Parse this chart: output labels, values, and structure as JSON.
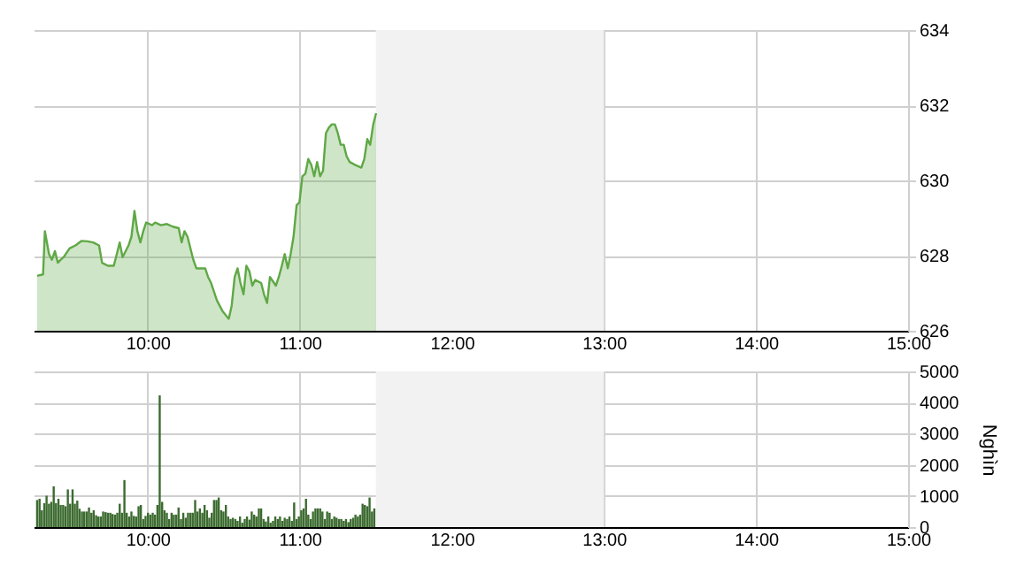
{
  "chart_data": [
    {
      "type": "area",
      "color": "#5fa846",
      "grid": true,
      "x": [
        9.273,
        9.312,
        9.324,
        9.351,
        9.37,
        9.39,
        9.409,
        9.428,
        9.448,
        9.486,
        9.525,
        9.564,
        9.603,
        9.641,
        9.68,
        9.7,
        9.738,
        9.777,
        9.797,
        9.816,
        9.835,
        9.874,
        9.893,
        9.913,
        9.932,
        9.952,
        9.971,
        9.99,
        10.029,
        10.049,
        10.087,
        10.126,
        10.165,
        10.204,
        10.223,
        10.242,
        10.262,
        10.3,
        10.32,
        10.378,
        10.397,
        10.417,
        10.455,
        10.494,
        10.533,
        10.552,
        10.572,
        10.591,
        10.61,
        10.63,
        10.649,
        10.669,
        10.688,
        10.707,
        10.746,
        10.765,
        10.785,
        10.804,
        10.843,
        10.862,
        10.882,
        10.901,
        10.921,
        10.94,
        10.959,
        10.979,
        10.998,
        11.017,
        11.037,
        11.056,
        11.076,
        11.095,
        11.114,
        11.134,
        11.153,
        11.172,
        11.192,
        11.211,
        11.231,
        11.25,
        11.269,
        11.289,
        11.308,
        11.328,
        11.366,
        11.405,
        11.424,
        11.444,
        11.463,
        11.483,
        11.502
      ],
      "values": [
        627.46,
        627.5,
        628.65,
        628.04,
        627.89,
        628.12,
        627.81,
        627.89,
        627.96,
        628.19,
        628.27,
        628.39,
        628.38,
        628.35,
        628.27,
        627.81,
        627.73,
        627.73,
        628.04,
        628.35,
        627.96,
        628.27,
        628.5,
        629.19,
        628.65,
        628.35,
        628.65,
        628.88,
        628.81,
        628.88,
        628.81,
        628.84,
        628.77,
        628.73,
        628.35,
        628.65,
        628.5,
        627.89,
        627.66,
        627.66,
        627.43,
        627.27,
        626.81,
        626.51,
        626.32,
        626.66,
        627.43,
        627.66,
        627.27,
        626.97,
        627.73,
        627.58,
        627.2,
        627.35,
        627.27,
        626.97,
        626.74,
        627.43,
        627.2,
        627.43,
        627.73,
        628.04,
        627.66,
        628.04,
        628.5,
        629.34,
        629.42,
        630.11,
        630.18,
        630.57,
        630.41,
        630.11,
        630.49,
        630.11,
        630.26,
        631.26,
        631.41,
        631.49,
        631.49,
        631.26,
        630.95,
        630.95,
        630.64,
        630.49,
        630.41,
        630.34,
        630.57,
        631.1,
        630.95,
        631.49,
        631.79
      ],
      "xlim": [
        9.25,
        15
      ],
      "xticks": [
        {
          "value": 10,
          "label": "10:00"
        },
        {
          "value": 11,
          "label": "11:00"
        },
        {
          "value": 12,
          "label": "12:00"
        },
        {
          "value": 13,
          "label": "13:00"
        },
        {
          "value": 14,
          "label": "14:00"
        },
        {
          "value": 15,
          "label": "15:00"
        }
      ],
      "ylim": [
        626,
        634
      ],
      "yticks": [
        626,
        628,
        630,
        632,
        634
      ],
      "bands": [
        {
          "axis": "x",
          "from": 11.5,
          "to": 13,
          "color": "#f2f2f2"
        }
      ]
    },
    {
      "type": "bar",
      "color": "#3c6b30",
      "grid": true,
      "ylabel": "Nghìn",
      "x": [
        9.273,
        9.289,
        9.304,
        9.32,
        9.335,
        9.351,
        9.366,
        9.382,
        9.397,
        9.413,
        9.428,
        9.444,
        9.459,
        9.475,
        9.49,
        9.506,
        9.521,
        9.537,
        9.552,
        9.568,
        9.583,
        9.599,
        9.614,
        9.63,
        9.645,
        9.661,
        9.676,
        9.692,
        9.707,
        9.723,
        9.738,
        9.754,
        9.769,
        9.785,
        9.8,
        9.816,
        9.831,
        9.847,
        9.862,
        9.878,
        9.893,
        9.909,
        9.924,
        9.94,
        9.955,
        9.971,
        9.986,
        10.002,
        10.017,
        10.033,
        10.048,
        10.064,
        10.079,
        10.095,
        10.11,
        10.126,
        10.141,
        10.157,
        10.172,
        10.188,
        10.203,
        10.219,
        10.234,
        10.25,
        10.265,
        10.281,
        10.296,
        10.312,
        10.327,
        10.343,
        10.359,
        10.374,
        10.39,
        10.405,
        10.421,
        10.436,
        10.452,
        10.467,
        10.483,
        10.498,
        10.514,
        10.529,
        10.545,
        10.56,
        10.576,
        10.591,
        10.607,
        10.622,
        10.638,
        10.653,
        10.669,
        10.684,
        10.7,
        10.715,
        10.731,
        10.746,
        10.762,
        10.777,
        10.793,
        10.808,
        10.824,
        10.839,
        10.855,
        10.87,
        10.886,
        10.901,
        10.917,
        10.932,
        10.948,
        10.963,
        10.979,
        10.994,
        11.01,
        11.025,
        11.041,
        11.056,
        11.072,
        11.087,
        11.103,
        11.118,
        11.134,
        11.149,
        11.165,
        11.18,
        11.196,
        11.211,
        11.227,
        11.242,
        11.258,
        11.273,
        11.289,
        11.304,
        11.32,
        11.335,
        11.351,
        11.366,
        11.382,
        11.397,
        11.413,
        11.428,
        11.444,
        11.459,
        11.475,
        11.49
      ],
      "values": [
        870,
        910,
        540,
        770,
        1010,
        750,
        810,
        1310,
        770,
        910,
        710,
        710,
        670,
        1210,
        750,
        1210,
        750,
        850,
        590,
        500,
        500,
        500,
        630,
        460,
        540,
        380,
        340,
        340,
        500,
        480,
        460,
        460,
        420,
        400,
        460,
        750,
        460,
        1510,
        460,
        340,
        500,
        360,
        340,
        670,
        710,
        260,
        360,
        460,
        400,
        460,
        400,
        710,
        4230,
        810,
        540,
        460,
        260,
        460,
        400,
        400,
        630,
        260,
        460,
        300,
        460,
        460,
        460,
        870,
        500,
        600,
        460,
        710,
        540,
        300,
        460,
        870,
        870,
        950,
        540,
        500,
        710,
        340,
        260,
        300,
        260,
        200,
        340,
        140,
        260,
        340,
        240,
        500,
        400,
        340,
        600,
        600,
        260,
        180,
        340,
        140,
        200,
        340,
        260,
        340,
        200,
        300,
        260,
        340,
        200,
        790,
        260,
        340,
        540,
        600,
        910,
        400,
        260,
        500,
        600,
        600,
        600,
        500,
        260,
        500,
        460,
        260,
        340,
        300,
        260,
        260,
        200,
        260,
        160,
        260,
        300,
        400,
        340,
        400,
        750,
        710,
        670,
        950,
        500,
        600
      ],
      "xlim": [
        9.25,
        15
      ],
      "xticks": [
        {
          "value": 10,
          "label": "10:00"
        },
        {
          "value": 11,
          "label": "11:00"
        },
        {
          "value": 12,
          "label": "12:00"
        },
        {
          "value": 13,
          "label": "13:00"
        },
        {
          "value": 14,
          "label": "14:00"
        },
        {
          "value": 15,
          "label": "15:00"
        }
      ],
      "ylim": [
        0,
        5000
      ],
      "yticks": [
        0,
        1000,
        2000,
        3000,
        4000,
        5000
      ],
      "bands": [
        {
          "axis": "x",
          "from": 11.5,
          "to": 13,
          "color": "#f2f2f2"
        }
      ]
    }
  ]
}
